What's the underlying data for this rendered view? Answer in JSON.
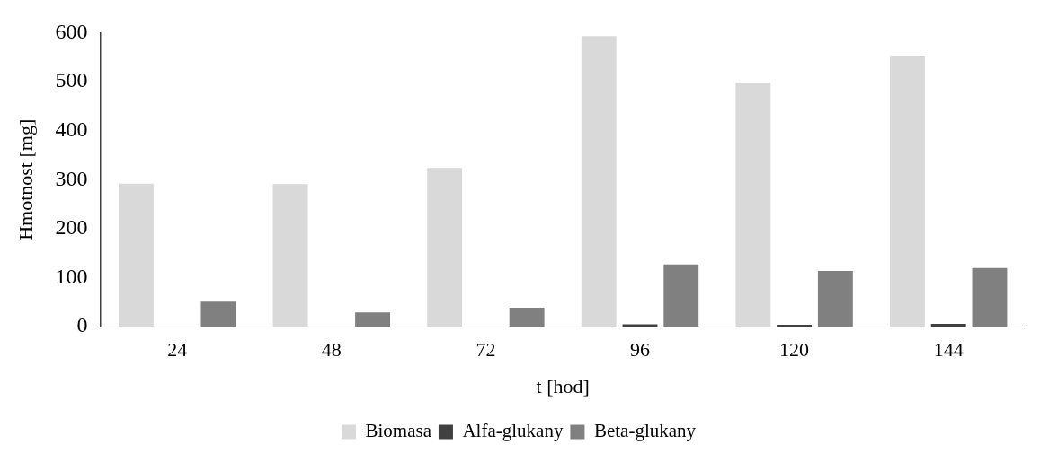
{
  "chart_data": {
    "type": "bar",
    "xlabel": "t [hod]",
    "ylabel": "Hmotnost [mg]",
    "categories": [
      "24",
      "48",
      "72",
      "96",
      "120",
      "144"
    ],
    "series": [
      {
        "name": "Biomasa",
        "color": "#d9d9d9",
        "values": [
          292,
          291,
          324,
          593,
          498,
          553
        ]
      },
      {
        "name": "Alfa-glukany",
        "color": "#404040",
        "values": [
          null,
          null,
          null,
          5,
          4,
          6
        ]
      },
      {
        "name": "Beta-glukany",
        "color": "#808080",
        "values": [
          51,
          29,
          39,
          127,
          114,
          120
        ]
      }
    ],
    "ylim": [
      0,
      600
    ],
    "yticks": [
      0,
      100,
      200,
      300,
      400,
      500,
      600
    ],
    "grid": false,
    "legend": "bottom"
  }
}
